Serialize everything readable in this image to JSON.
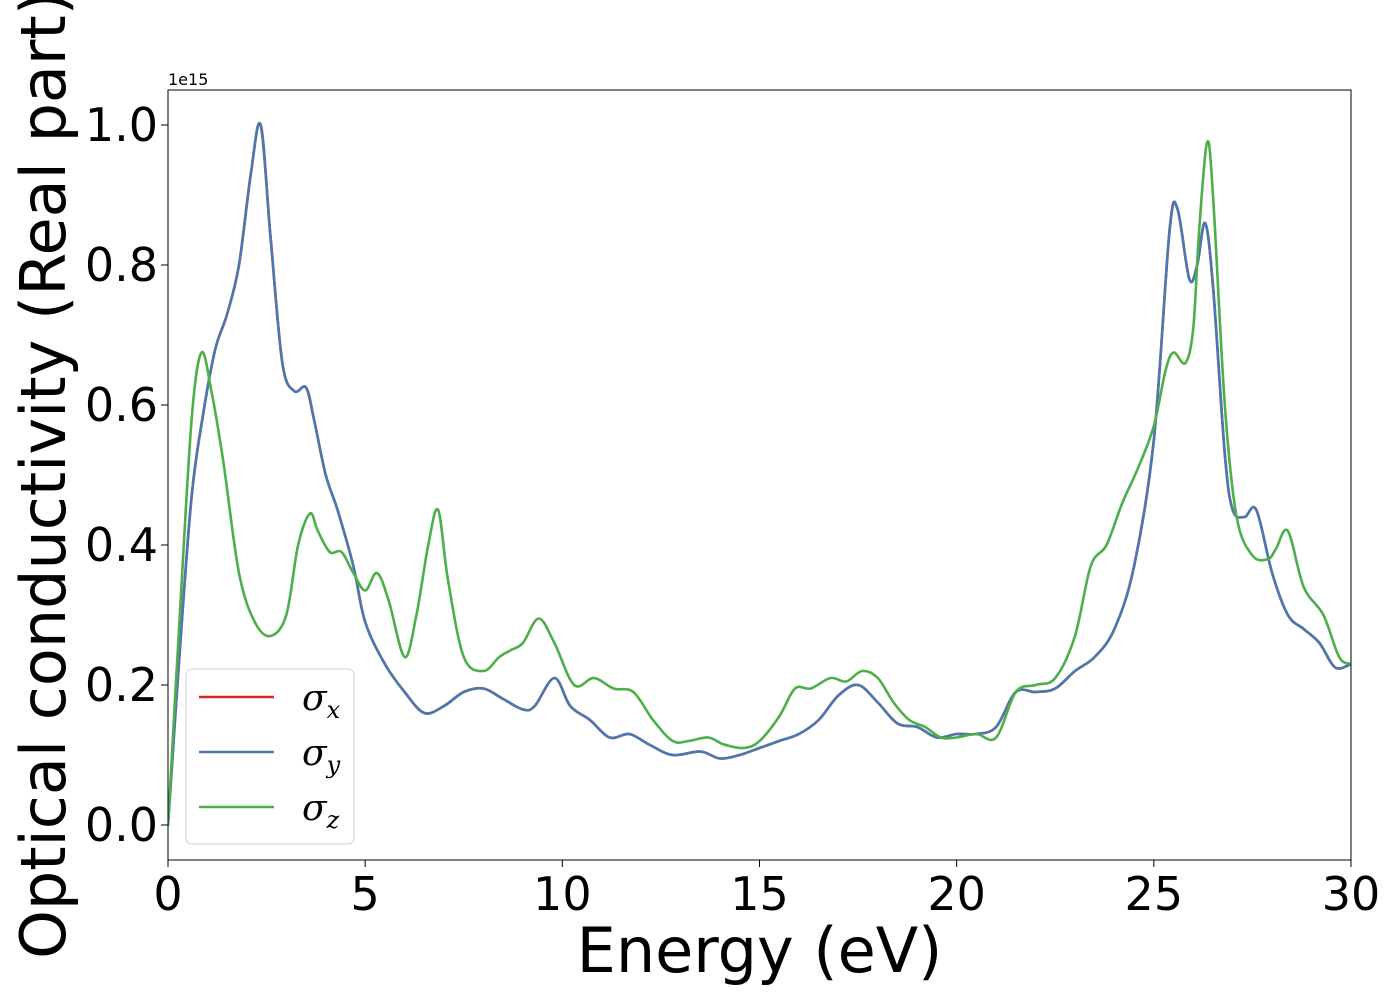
{
  "chart_data": {
    "type": "line",
    "title": "",
    "xlabel": "Energy (eV)",
    "ylabel": "Optical conductivity (Real part)",
    "offset_text": "1e15",
    "xlim": [
      0,
      30
    ],
    "ylim": [
      -0.05,
      1.05
    ],
    "y_scale_multiplier": 1000000000000000.0,
    "x_ticks": [
      0,
      5,
      10,
      15,
      20,
      25,
      30
    ],
    "x_tick_labels": [
      "0",
      "5",
      "10",
      "15",
      "20",
      "25",
      "30"
    ],
    "y_ticks": [
      0.0,
      0.2,
      0.4,
      0.6,
      0.8,
      1.0
    ],
    "y_tick_labels": [
      "0.0",
      "0.2",
      "0.4",
      "0.6",
      "0.8",
      "1.0"
    ],
    "grid": false,
    "legend_position": "lower-left",
    "series": [
      {
        "name": "σx",
        "symbol": "σ",
        "subscript": "x",
        "color": "#d62728",
        "x": [
          0,
          0.3,
          0.6,
          0.9,
          1.2,
          1.5,
          1.8,
          2.1,
          2.35,
          2.6,
          2.9,
          3.2,
          3.5,
          3.7,
          4.0,
          4.3,
          4.7,
          5.0,
          5.5,
          6.0,
          6.5,
          7.0,
          7.5,
          8.0,
          8.5,
          9.0,
          9.3,
          9.8,
          10.2,
          10.7,
          11.2,
          11.7,
          12.2,
          12.8,
          13.5,
          14.0,
          14.5,
          15.0,
          15.5,
          16.0,
          16.5,
          17.0,
          17.5,
          18.0,
          18.5,
          19.0,
          19.5,
          20.0,
          20.5,
          21.0,
          21.5,
          22.0,
          22.5,
          23.0,
          23.5,
          24.0,
          24.5,
          25.0,
          25.4,
          25.6,
          25.9,
          26.1,
          26.3,
          26.5,
          26.8,
          27.0,
          27.3,
          27.6,
          28.0,
          28.4,
          28.8,
          29.2,
          29.6,
          30.0
        ],
        "y": [
          0.0,
          0.25,
          0.47,
          0.59,
          0.68,
          0.73,
          0.8,
          0.93,
          1.0,
          0.84,
          0.66,
          0.62,
          0.625,
          0.58,
          0.5,
          0.45,
          0.37,
          0.29,
          0.23,
          0.19,
          0.16,
          0.17,
          0.19,
          0.195,
          0.18,
          0.165,
          0.17,
          0.21,
          0.17,
          0.15,
          0.125,
          0.13,
          0.115,
          0.1,
          0.105,
          0.095,
          0.1,
          0.11,
          0.12,
          0.13,
          0.15,
          0.185,
          0.2,
          0.175,
          0.145,
          0.14,
          0.125,
          0.13,
          0.13,
          0.14,
          0.19,
          0.19,
          0.195,
          0.22,
          0.24,
          0.28,
          0.37,
          0.55,
          0.85,
          0.88,
          0.78,
          0.8,
          0.86,
          0.77,
          0.53,
          0.45,
          0.44,
          0.45,
          0.36,
          0.3,
          0.28,
          0.26,
          0.225,
          0.23
        ]
      },
      {
        "name": "σy",
        "symbol": "σ",
        "subscript": "y",
        "color": "#4a78b0",
        "x": [
          0,
          0.3,
          0.6,
          0.9,
          1.2,
          1.5,
          1.8,
          2.1,
          2.35,
          2.6,
          2.9,
          3.2,
          3.5,
          3.7,
          4.0,
          4.3,
          4.7,
          5.0,
          5.5,
          6.0,
          6.5,
          7.0,
          7.5,
          8.0,
          8.5,
          9.0,
          9.3,
          9.8,
          10.2,
          10.7,
          11.2,
          11.7,
          12.2,
          12.8,
          13.5,
          14.0,
          14.5,
          15.0,
          15.5,
          16.0,
          16.5,
          17.0,
          17.5,
          18.0,
          18.5,
          19.0,
          19.5,
          20.0,
          20.5,
          21.0,
          21.5,
          22.0,
          22.5,
          23.0,
          23.5,
          24.0,
          24.5,
          25.0,
          25.4,
          25.6,
          25.9,
          26.1,
          26.3,
          26.5,
          26.8,
          27.0,
          27.3,
          27.6,
          28.0,
          28.4,
          28.8,
          29.2,
          29.6,
          30.0
        ],
        "y": [
          0.0,
          0.25,
          0.47,
          0.59,
          0.68,
          0.73,
          0.8,
          0.93,
          1.0,
          0.84,
          0.66,
          0.62,
          0.625,
          0.58,
          0.5,
          0.45,
          0.37,
          0.29,
          0.23,
          0.19,
          0.16,
          0.17,
          0.19,
          0.195,
          0.18,
          0.165,
          0.17,
          0.21,
          0.17,
          0.15,
          0.125,
          0.13,
          0.115,
          0.1,
          0.105,
          0.095,
          0.1,
          0.11,
          0.12,
          0.13,
          0.15,
          0.185,
          0.2,
          0.175,
          0.145,
          0.14,
          0.125,
          0.13,
          0.13,
          0.14,
          0.19,
          0.19,
          0.195,
          0.22,
          0.24,
          0.28,
          0.37,
          0.55,
          0.85,
          0.88,
          0.78,
          0.8,
          0.86,
          0.77,
          0.53,
          0.45,
          0.44,
          0.45,
          0.36,
          0.3,
          0.28,
          0.26,
          0.225,
          0.23
        ]
      },
      {
        "name": "σz",
        "symbol": "σ",
        "subscript": "z",
        "color": "#4daf4a",
        "x": [
          0,
          0.3,
          0.6,
          0.85,
          1.1,
          1.4,
          1.8,
          2.2,
          2.6,
          3.0,
          3.3,
          3.6,
          3.8,
          4.1,
          4.4,
          4.7,
          5.0,
          5.3,
          5.6,
          6.0,
          6.3,
          6.6,
          6.85,
          7.1,
          7.5,
          8.0,
          8.4,
          8.7,
          9.0,
          9.4,
          9.8,
          10.3,
          10.8,
          11.3,
          11.8,
          12.3,
          12.8,
          13.2,
          13.7,
          14.1,
          14.6,
          15.0,
          15.5,
          15.9,
          16.3,
          16.8,
          17.2,
          17.6,
          18.0,
          18.4,
          18.8,
          19.2,
          19.6,
          20.0,
          20.5,
          21.0,
          21.5,
          22.0,
          22.5,
          23.0,
          23.4,
          23.8,
          24.2,
          24.6,
          25.0,
          25.3,
          25.5,
          25.8,
          26.0,
          26.15,
          26.35,
          26.5,
          26.8,
          27.1,
          27.5,
          27.9,
          28.1,
          28.4,
          28.8,
          29.3,
          29.7,
          30.0
        ],
        "y": [
          0.0,
          0.3,
          0.58,
          0.675,
          0.62,
          0.52,
          0.36,
          0.29,
          0.27,
          0.3,
          0.4,
          0.445,
          0.42,
          0.39,
          0.39,
          0.36,
          0.335,
          0.36,
          0.32,
          0.24,
          0.3,
          0.4,
          0.45,
          0.35,
          0.24,
          0.22,
          0.24,
          0.25,
          0.26,
          0.295,
          0.26,
          0.2,
          0.21,
          0.195,
          0.19,
          0.15,
          0.12,
          0.12,
          0.125,
          0.115,
          0.11,
          0.12,
          0.155,
          0.195,
          0.195,
          0.21,
          0.205,
          0.22,
          0.21,
          0.175,
          0.15,
          0.14,
          0.125,
          0.125,
          0.13,
          0.125,
          0.19,
          0.2,
          0.21,
          0.27,
          0.37,
          0.4,
          0.46,
          0.51,
          0.57,
          0.65,
          0.675,
          0.66,
          0.71,
          0.85,
          0.975,
          0.9,
          0.6,
          0.44,
          0.385,
          0.38,
          0.395,
          0.42,
          0.34,
          0.3,
          0.24,
          0.23
        ]
      }
    ]
  }
}
